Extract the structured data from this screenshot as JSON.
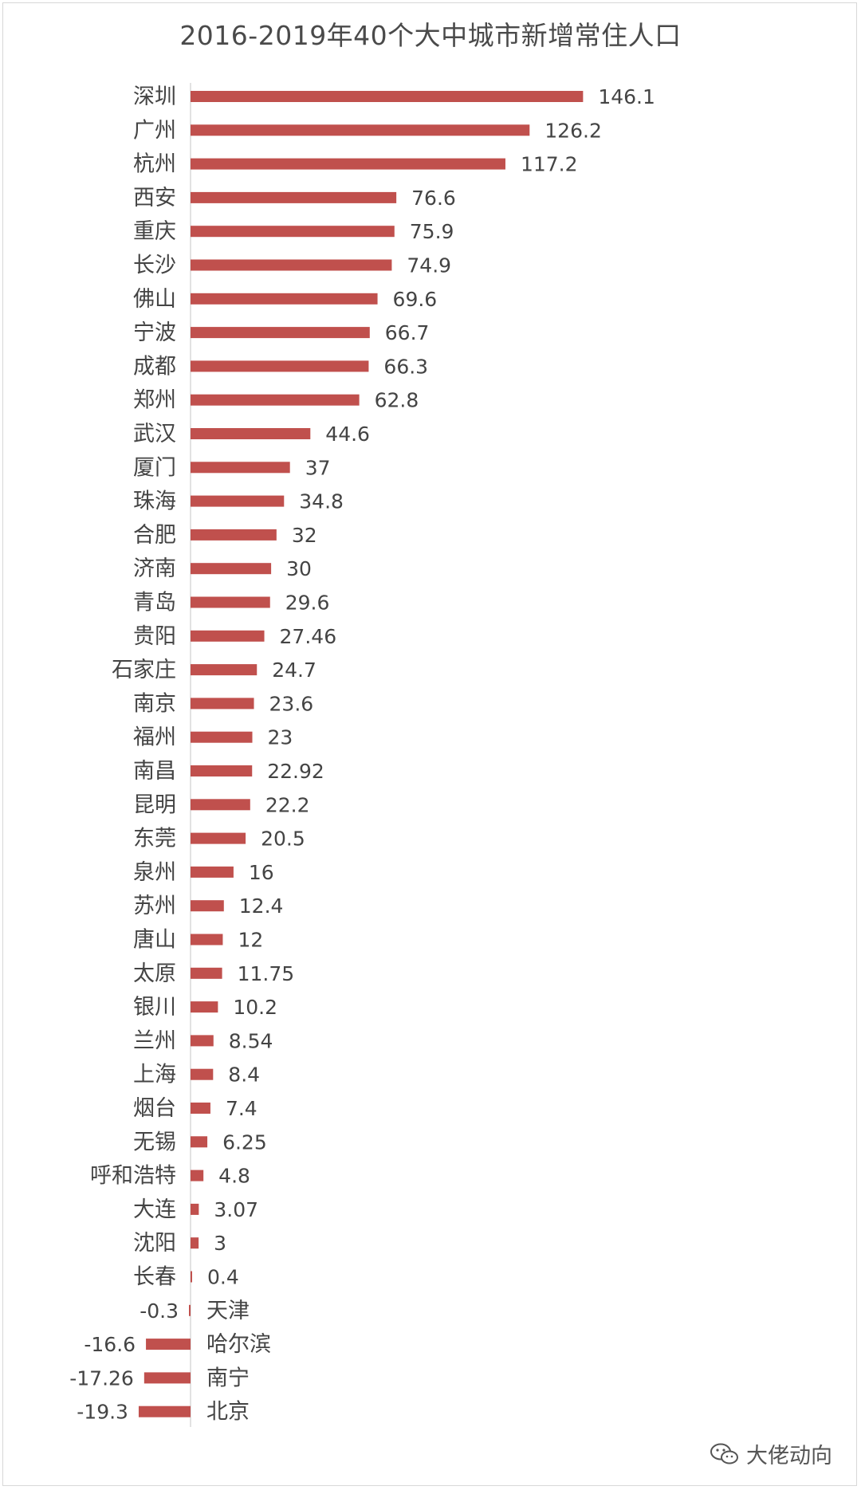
{
  "chart_data": {
    "type": "bar",
    "orientation": "horizontal",
    "title": "2016-2019年40个大中城市新增常住人口",
    "categories": [
      "深圳",
      "广州",
      "杭州",
      "西安",
      "重庆",
      "长沙",
      "佛山",
      "宁波",
      "成都",
      "郑州",
      "武汉",
      "厦门",
      "珠海",
      "合肥",
      "济南",
      "青岛",
      "贵阳",
      "石家庄",
      "南京",
      "福州",
      "南昌",
      "昆明",
      "东莞",
      "泉州",
      "苏州",
      "唐山",
      "太原",
      "银川",
      "兰州",
      "上海",
      "烟台",
      "无锡",
      "呼和浩特",
      "大连",
      "沈阳",
      "长春",
      "天津",
      "哈尔滨",
      "南宁",
      "北京"
    ],
    "values": [
      146.1,
      126.2,
      117.2,
      76.6,
      75.9,
      74.9,
      69.6,
      66.7,
      66.3,
      62.8,
      44.6,
      37,
      34.8,
      32,
      30,
      29.6,
      27.46,
      24.7,
      23.6,
      23,
      22.92,
      22.2,
      20.5,
      16,
      12.4,
      12,
      11.75,
      10.2,
      8.54,
      8.4,
      7.4,
      6.25,
      4.8,
      3.07,
      3,
      0.4,
      -0.3,
      -16.6,
      -17.26,
      -19.3
    ],
    "value_labels": [
      "146.1",
      "126.2",
      "117.2",
      "76.6",
      "75.9",
      "74.9",
      "69.6",
      "66.7",
      "66.3",
      "62.8",
      "44.6",
      "37",
      "34.8",
      "32",
      "30",
      "29.6",
      "27.46",
      "24.7",
      "23.6",
      "23",
      "22.92",
      "22.2",
      "20.5",
      "16",
      "12.4",
      "12",
      "11.75",
      "10.2",
      "8.54",
      "8.4",
      "7.4",
      "6.25",
      "4.8",
      "3.07",
      "3",
      "0.4",
      "-0.3",
      "-16.6",
      "-17.26",
      "-19.3"
    ],
    "bar_color": "#c0504d",
    "axis_color": "#d9d9d9",
    "xlim": [
      -19.3,
      146.1
    ],
    "grid": false,
    "legend": "none"
  },
  "watermark": {
    "text": "大佬动向",
    "icon": "wechat-icon"
  }
}
